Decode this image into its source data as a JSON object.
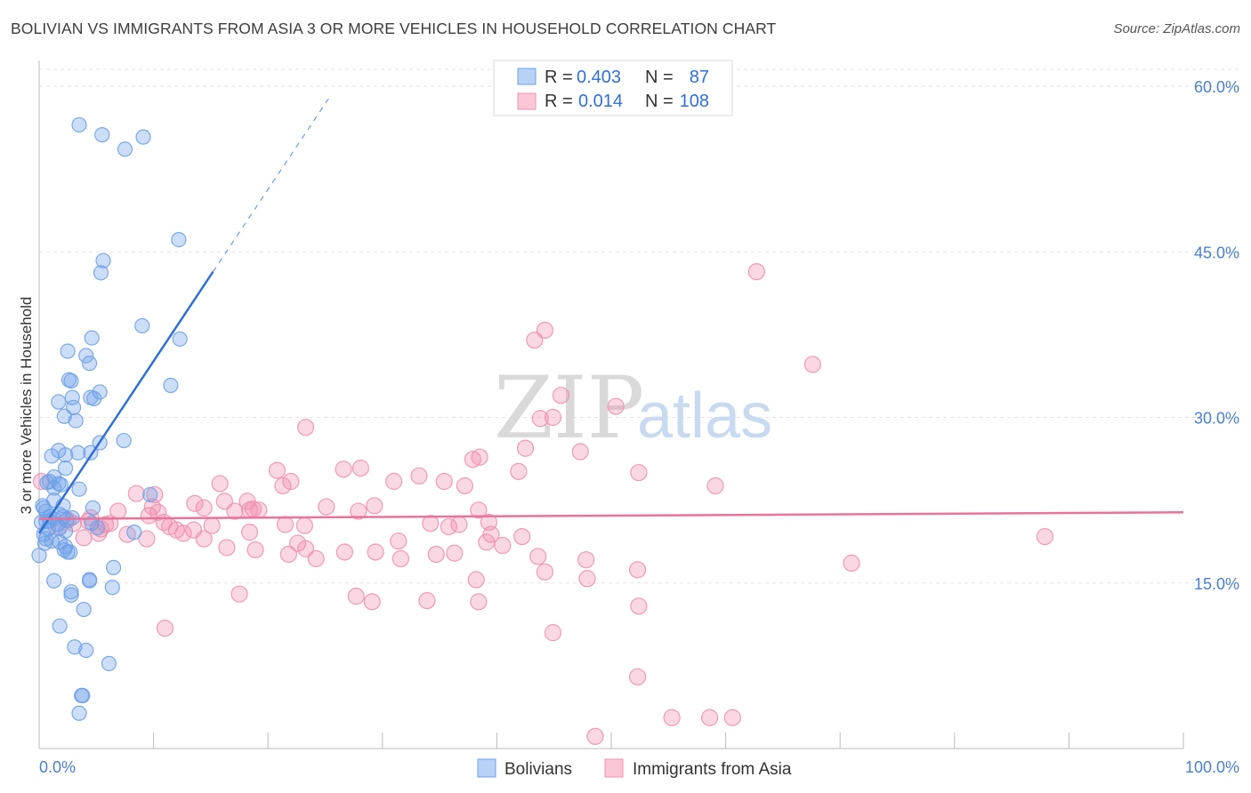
{
  "title": "BOLIVIAN VS IMMIGRANTS FROM ASIA 3 OR MORE VEHICLES IN HOUSEHOLD CORRELATION CHART",
  "source": "Source: ZipAtlas.com",
  "watermark": {
    "zip": "ZIP",
    "atlas": "atlas"
  },
  "legend_top": {
    "rows": [
      {
        "r_label": "R =",
        "r_value": "0.403",
        "n_label": "N =",
        "n_value": "87"
      },
      {
        "r_label": "R =",
        "r_value": "0.014",
        "n_label": "N =",
        "n_value": "108"
      }
    ]
  },
  "legend_bottom": {
    "items": [
      "Bolivians",
      "Immigrants from Asia"
    ]
  },
  "chart_data": {
    "type": "scatter",
    "title": "BOLIVIAN VS IMMIGRANTS FROM ASIA 3 OR MORE VEHICLES IN HOUSEHOLD CORRELATION CHART",
    "xlabel": "",
    "ylabel": "3 or more Vehicles in Household",
    "xlim": [
      0,
      100
    ],
    "ylim": [
      0,
      63
    ],
    "x_tick_labels": [
      "0.0%",
      "100.0%"
    ],
    "y_ticks": [
      15,
      30,
      45,
      60
    ],
    "y_tick_labels": [
      "15.0%",
      "30.0%",
      "45.0%",
      "60.0%"
    ],
    "grid": true,
    "colors": {
      "bolivians": "#6ea0e8",
      "asia": "#f08fb0",
      "bolivians_line": "#2f6fd6",
      "asia_line": "#e8739b"
    },
    "series": [
      {
        "name": "Bolivians",
        "r": 0.403,
        "n": 87,
        "trend": {
          "x0": 0,
          "y0": 19.5,
          "x1": 15.2,
          "y1": 43.2,
          "dash_to_x": 25.5,
          "dash_to_y": 59.2
        },
        "points": [
          [
            3.5,
            56.5
          ],
          [
            5.5,
            55.6
          ],
          [
            9.1,
            55.4
          ],
          [
            7.5,
            54.3
          ],
          [
            12.2,
            46.1
          ],
          [
            5.6,
            44.2
          ],
          [
            5.4,
            43.1
          ],
          [
            9.0,
            38.3
          ],
          [
            4.6,
            37.2
          ],
          [
            12.3,
            37.1
          ],
          [
            2.5,
            36.0
          ],
          [
            4.1,
            35.6
          ],
          [
            4.4,
            34.9
          ],
          [
            2.6,
            33.4
          ],
          [
            2.8,
            33.3
          ],
          [
            11.5,
            32.9
          ],
          [
            5.3,
            32.3
          ],
          [
            2.9,
            31.8
          ],
          [
            4.5,
            31.8
          ],
          [
            1.7,
            31.4
          ],
          [
            4.8,
            31.7
          ],
          [
            3.0,
            30.9
          ],
          [
            2.2,
            30.1
          ],
          [
            3.2,
            29.7
          ],
          [
            7.4,
            27.9
          ],
          [
            5.3,
            27.7
          ],
          [
            1.7,
            27.0
          ],
          [
            3.4,
            26.8
          ],
          [
            4.5,
            26.8
          ],
          [
            1.1,
            26.5
          ],
          [
            2.3,
            26.6
          ],
          [
            2.3,
            25.4
          ],
          [
            1.3,
            24.6
          ],
          [
            0.9,
            24.2
          ],
          [
            1.7,
            24.0
          ],
          [
            1.3,
            23.6
          ],
          [
            3.5,
            23.5
          ],
          [
            0.3,
            22.0
          ],
          [
            0.6,
            21.5
          ],
          [
            0.9,
            21.0
          ],
          [
            1.3,
            20.8
          ],
          [
            1.8,
            21.2
          ],
          [
            2.1,
            21.0
          ],
          [
            0.6,
            20.6
          ],
          [
            2.4,
            20.7
          ],
          [
            0.2,
            20.5
          ],
          [
            0.9,
            20.6
          ],
          [
            4.7,
            21.8
          ],
          [
            9.7,
            23.0
          ],
          [
            4.6,
            20.4
          ],
          [
            1.8,
            20.0
          ],
          [
            5.1,
            20.0
          ],
          [
            0.4,
            19.4
          ],
          [
            0.6,
            19.0
          ],
          [
            2.3,
            19.7
          ],
          [
            8.3,
            19.6
          ],
          [
            1.1,
            18.8
          ],
          [
            1.8,
            18.7
          ],
          [
            0.5,
            18.6
          ],
          [
            2.2,
            18.0
          ],
          [
            2.3,
            18.3
          ],
          [
            2.5,
            17.8
          ],
          [
            2.7,
            17.8
          ],
          [
            0.0,
            17.5
          ],
          [
            6.5,
            16.4
          ],
          [
            1.3,
            15.2
          ],
          [
            4.4,
            15.2
          ],
          [
            4.4,
            15.3
          ],
          [
            6.4,
            14.6
          ],
          [
            2.8,
            14.2
          ],
          [
            2.8,
            13.9
          ],
          [
            3.9,
            12.6
          ],
          [
            1.8,
            11.1
          ],
          [
            3.1,
            9.2
          ],
          [
            4.1,
            8.9
          ],
          [
            6.1,
            7.7
          ],
          [
            3.7,
            4.8
          ],
          [
            3.8,
            4.8
          ],
          [
            3.5,
            3.2
          ],
          [
            1.3,
            22.5
          ],
          [
            1.9,
            23.9
          ],
          [
            0.7,
            24.1
          ],
          [
            2.1,
            22.0
          ],
          [
            0.4,
            21.8
          ],
          [
            1.6,
            20.3
          ],
          [
            2.9,
            20.9
          ],
          [
            0.8,
            19.9
          ]
        ]
      },
      {
        "name": "Immigrants from Asia",
        "r": 0.014,
        "n": 108,
        "trend": {
          "x0": 0,
          "y0": 20.8,
          "x1": 100,
          "y1": 21.4
        },
        "points": [
          [
            62.7,
            43.2
          ],
          [
            44.2,
            37.9
          ],
          [
            43.3,
            37.0
          ],
          [
            67.6,
            34.8
          ],
          [
            45.6,
            32.0
          ],
          [
            50.4,
            31.0
          ],
          [
            43.8,
            29.9
          ],
          [
            44.9,
            30.0
          ],
          [
            23.3,
            29.1
          ],
          [
            42.5,
            27.2
          ],
          [
            47.3,
            26.9
          ],
          [
            38.5,
            26.4
          ],
          [
            37.9,
            26.2
          ],
          [
            28.1,
            25.4
          ],
          [
            26.6,
            25.3
          ],
          [
            20.8,
            25.2
          ],
          [
            41.9,
            25.1
          ],
          [
            52.4,
            25.0
          ],
          [
            33.2,
            24.7
          ],
          [
            31.0,
            24.2
          ],
          [
            35.4,
            24.2
          ],
          [
            15.8,
            24.0
          ],
          [
            22.0,
            24.2
          ],
          [
            59.1,
            23.8
          ],
          [
            21.3,
            23.8
          ],
          [
            37.2,
            23.8
          ],
          [
            8.5,
            23.1
          ],
          [
            10.1,
            23.0
          ],
          [
            18.2,
            22.4
          ],
          [
            16.2,
            22.4
          ],
          [
            13.6,
            22.2
          ],
          [
            29.3,
            22.0
          ],
          [
            9.9,
            21.9
          ],
          [
            19.2,
            21.6
          ],
          [
            14.4,
            21.8
          ],
          [
            18.7,
            21.7
          ],
          [
            25.1,
            21.9
          ],
          [
            27.9,
            21.5
          ],
          [
            38.4,
            21.6
          ],
          [
            18.4,
            21.6
          ],
          [
            17.1,
            21.5
          ],
          [
            10.4,
            21.4
          ],
          [
            6.9,
            21.5
          ],
          [
            9.6,
            21.1
          ],
          [
            2.5,
            20.7
          ],
          [
            4.5,
            20.9
          ],
          [
            4.3,
            20.6
          ],
          [
            10.9,
            20.5
          ],
          [
            6.2,
            20.4
          ],
          [
            3.0,
            20.4
          ],
          [
            1.7,
            20.0
          ],
          [
            11.4,
            20.1
          ],
          [
            5.8,
            20.3
          ],
          [
            15.1,
            20.2
          ],
          [
            34.2,
            20.4
          ],
          [
            36.7,
            20.3
          ],
          [
            39.3,
            20.5
          ],
          [
            35.8,
            20.1
          ],
          [
            21.5,
            20.3
          ],
          [
            23.2,
            20.2
          ],
          [
            5.4,
            19.9
          ],
          [
            12.0,
            19.8
          ],
          [
            13.5,
            19.8
          ],
          [
            18.4,
            19.6
          ],
          [
            5.2,
            19.5
          ],
          [
            7.7,
            19.4
          ],
          [
            12.6,
            19.5
          ],
          [
            9.4,
            19.0
          ],
          [
            14.4,
            19.0
          ],
          [
            39.5,
            19.4
          ],
          [
            42.2,
            19.2
          ],
          [
            31.4,
            18.8
          ],
          [
            22.6,
            18.6
          ],
          [
            39.1,
            18.7
          ],
          [
            40.5,
            18.4
          ],
          [
            16.4,
            18.2
          ],
          [
            18.9,
            18.0
          ],
          [
            23.3,
            18.1
          ],
          [
            26.7,
            17.8
          ],
          [
            21.8,
            17.6
          ],
          [
            29.4,
            17.8
          ],
          [
            34.7,
            17.6
          ],
          [
            36.3,
            17.7
          ],
          [
            31.6,
            17.2
          ],
          [
            24.2,
            17.2
          ],
          [
            43.6,
            17.4
          ],
          [
            47.8,
            17.1
          ],
          [
            44.2,
            16.0
          ],
          [
            52.3,
            16.2
          ],
          [
            47.9,
            15.4
          ],
          [
            38.2,
            15.3
          ],
          [
            29.1,
            13.3
          ],
          [
            38.4,
            13.3
          ],
          [
            27.7,
            13.8
          ],
          [
            17.5,
            14.0
          ],
          [
            33.9,
            13.4
          ],
          [
            52.4,
            12.9
          ],
          [
            44.9,
            10.5
          ],
          [
            11.0,
            10.9
          ],
          [
            71.0,
            16.8
          ],
          [
            87.9,
            19.2
          ],
          [
            52.3,
            6.5
          ],
          [
            55.3,
            2.8
          ],
          [
            58.6,
            2.8
          ],
          [
            60.6,
            2.8
          ],
          [
            48.6,
            1.1
          ],
          [
            3.9,
            19.1
          ],
          [
            0.2,
            24.2
          ]
        ]
      }
    ]
  }
}
